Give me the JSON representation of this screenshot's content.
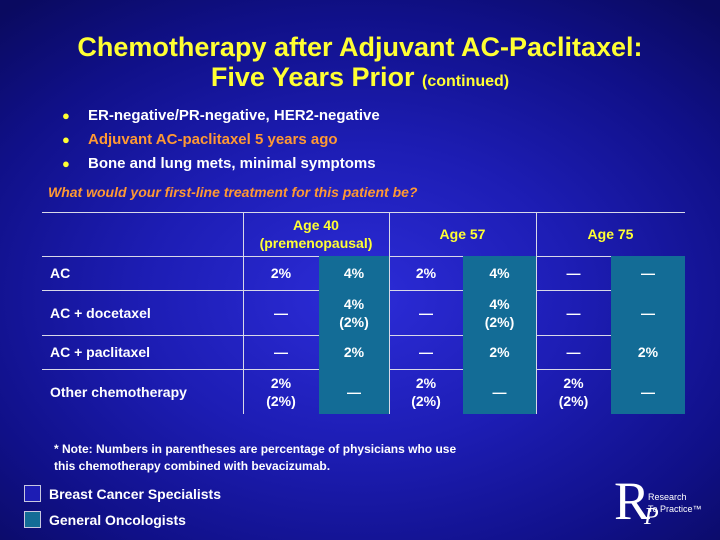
{
  "title": {
    "line1": "Chemotherapy after Adjuvant AC-Paclitaxel:",
    "line2": "Five Years Prior",
    "suffix": "(continued)"
  },
  "bullets": [
    {
      "text": "ER-negative/PR-negative, HER2-negative",
      "highlight": false
    },
    {
      "text": "Adjuvant AC-paclitaxel 5 years ago",
      "highlight": true
    },
    {
      "text": "Bone and lung mets, minimal symptoms",
      "highlight": false
    }
  ],
  "question": "What would your first-line treatment for this patient be?",
  "table": {
    "headers": [
      {
        "line1": "Age 40",
        "line2": "(premenopausal)"
      },
      {
        "line1": "Age 57",
        "line2": ""
      },
      {
        "line1": "Age 75",
        "line2": ""
      }
    ],
    "rows": [
      {
        "label": "AC",
        "cells": [
          [
            "2%",
            ""
          ],
          [
            "4%",
            ""
          ],
          [
            "2%",
            ""
          ],
          [
            "4%",
            ""
          ],
          [
            "—",
            ""
          ],
          [
            "—",
            ""
          ]
        ]
      },
      {
        "label": "AC + docetaxel",
        "cells": [
          [
            "—",
            ""
          ],
          [
            "4%",
            "(2%)"
          ],
          [
            "—",
            ""
          ],
          [
            "4%",
            "(2%)"
          ],
          [
            "—",
            ""
          ],
          [
            "—",
            ""
          ]
        ]
      },
      {
        "label": "AC + paclitaxel",
        "cells": [
          [
            "—",
            ""
          ],
          [
            "2%",
            ""
          ],
          [
            "—",
            ""
          ],
          [
            "2%",
            ""
          ],
          [
            "—",
            ""
          ],
          [
            "2%",
            ""
          ]
        ]
      },
      {
        "label": "Other chemotherapy",
        "cells": [
          [
            "2%",
            "(2%)"
          ],
          [
            "—",
            ""
          ],
          [
            "2%",
            "(2%)"
          ],
          [
            "—",
            ""
          ],
          [
            "2%",
            "(2%)"
          ],
          [
            "—",
            ""
          ]
        ]
      }
    ]
  },
  "note": {
    "line1": "* Note: Numbers in parentheses are percentage of physicians who use",
    "line2": "this chemotherapy combined with bevacizumab."
  },
  "legend": [
    {
      "label": "Breast Cancer Specialists",
      "color": "#1d1db4"
    },
    {
      "label": "General Oncologists",
      "color": "#136c96"
    }
  ],
  "logo": {
    "letter1": "R",
    "letter2": "P",
    "line1": "Research",
    "line2": "To Practice™"
  }
}
